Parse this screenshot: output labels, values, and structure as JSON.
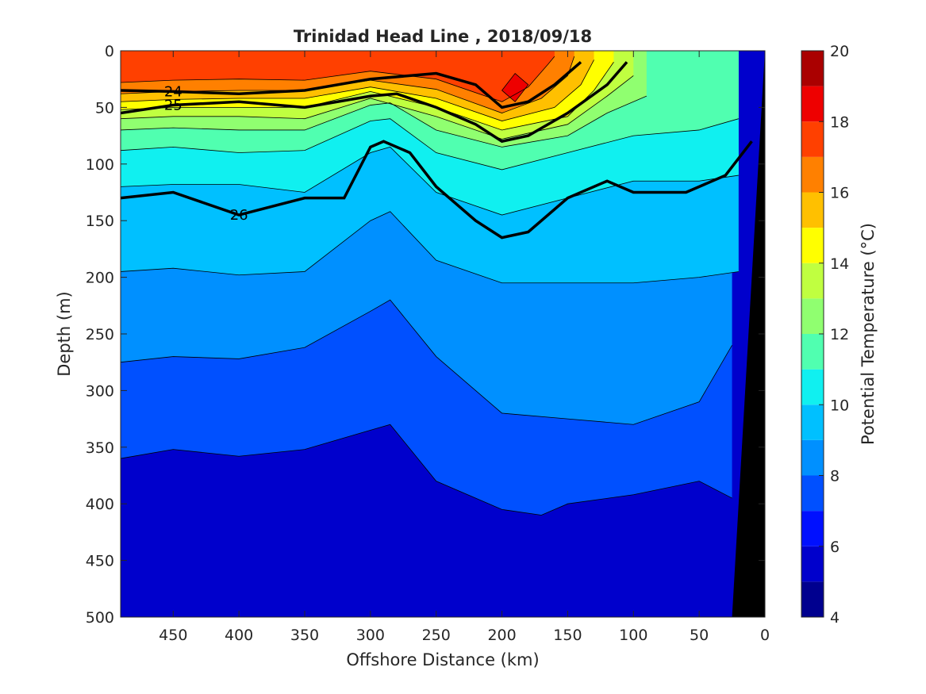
{
  "chart_data": {
    "type": "heatmap",
    "title": "Trinidad Head Line , 2018/09/18",
    "xlabel": "Offshore Distance (km)",
    "ylabel": "Depth (m)",
    "colorbar_label": "Potential Temperature (°C)",
    "xlim": [
      490,
      0
    ],
    "ylim": [
      0,
      500
    ],
    "y_reversed": true,
    "x_reversed": true,
    "xticks": [
      "450",
      "400",
      "350",
      "300",
      "250",
      "200",
      "150",
      "100",
      "50",
      "0"
    ],
    "yticks": [
      "0",
      "50",
      "100",
      "150",
      "200",
      "250",
      "300",
      "350",
      "400",
      "450",
      "500"
    ],
    "colorbar_ticks": [
      "20",
      "18",
      "16",
      "14",
      "12",
      "10",
      "8",
      "6",
      "4"
    ],
    "colorbar_range": [
      4,
      20
    ],
    "color_levels": [
      {
        "min": 4,
        "max": 5,
        "color": "#00008f"
      },
      {
        "min": 5,
        "max": 6,
        "color": "#0000cc"
      },
      {
        "min": 6,
        "max": 7,
        "color": "#0010ff"
      },
      {
        "min": 7,
        "max": 8,
        "color": "#0050ff"
      },
      {
        "min": 8,
        "max": 9,
        "color": "#0090ff"
      },
      {
        "min": 9,
        "max": 10,
        "color": "#00c0ff"
      },
      {
        "min": 10,
        "max": 11,
        "color": "#10f0f0"
      },
      {
        "min": 11,
        "max": 12,
        "color": "#50ffb0"
      },
      {
        "min": 12,
        "max": 13,
        "color": "#90ff70"
      },
      {
        "min": 13,
        "max": 14,
        "color": "#c0ff40"
      },
      {
        "min": 14,
        "max": 15,
        "color": "#ffff00"
      },
      {
        "min": 15,
        "max": 16,
        "color": "#ffc000"
      },
      {
        "min": 16,
        "max": 17,
        "color": "#ff8000"
      },
      {
        "min": 17,
        "max": 18,
        "color": "#ff4000"
      },
      {
        "min": 18,
        "max": 19,
        "color": "#ee0000"
      },
      {
        "min": 19,
        "max": 20,
        "color": "#aa0000"
      }
    ],
    "temperature_surfaces": [
      {
        "t": 7,
        "depth": [
          [
            490,
            360
          ],
          [
            450,
            352
          ],
          [
            400,
            358
          ],
          [
            350,
            352
          ],
          [
            300,
            335
          ],
          [
            285,
            330
          ],
          [
            250,
            380
          ],
          [
            200,
            405
          ],
          [
            170,
            410
          ],
          [
            150,
            400
          ],
          [
            100,
            392
          ],
          [
            50,
            380
          ],
          [
            25,
            395
          ]
        ]
      },
      {
        "t": 8,
        "depth": [
          [
            490,
            275
          ],
          [
            450,
            270
          ],
          [
            400,
            272
          ],
          [
            350,
            262
          ],
          [
            300,
            230
          ],
          [
            285,
            220
          ],
          [
            250,
            270
          ],
          [
            200,
            320
          ],
          [
            150,
            325
          ],
          [
            100,
            330
          ],
          [
            50,
            310
          ],
          [
            30,
            270
          ],
          [
            25,
            260
          ]
        ]
      },
      {
        "t": 9,
        "depth": [
          [
            490,
            195
          ],
          [
            450,
            192
          ],
          [
            400,
            198
          ],
          [
            350,
            195
          ],
          [
            300,
            150
          ],
          [
            285,
            142
          ],
          [
            250,
            185
          ],
          [
            200,
            205
          ],
          [
            150,
            205
          ],
          [
            100,
            205
          ],
          [
            50,
            200
          ],
          [
            20,
            195
          ]
        ]
      },
      {
        "t": 10,
        "depth": [
          [
            490,
            120
          ],
          [
            450,
            118
          ],
          [
            400,
            118
          ],
          [
            350,
            125
          ],
          [
            300,
            90
          ],
          [
            285,
            85
          ],
          [
            250,
            125
          ],
          [
            200,
            145
          ],
          [
            150,
            130
          ],
          [
            100,
            115
          ],
          [
            50,
            115
          ],
          [
            20,
            110
          ]
        ]
      },
      {
        "t": 11,
        "depth": [
          [
            490,
            88
          ],
          [
            450,
            85
          ],
          [
            400,
            90
          ],
          [
            350,
            88
          ],
          [
            300,
            62
          ],
          [
            285,
            60
          ],
          [
            250,
            90
          ],
          [
            200,
            105
          ],
          [
            150,
            90
          ],
          [
            100,
            75
          ],
          [
            50,
            70
          ],
          [
            20,
            60
          ]
        ]
      },
      {
        "t": 12,
        "depth": [
          [
            490,
            70
          ],
          [
            450,
            68
          ],
          [
            400,
            70
          ],
          [
            350,
            70
          ],
          [
            300,
            48
          ],
          [
            285,
            46
          ],
          [
            250,
            70
          ],
          [
            200,
            85
          ],
          [
            150,
            75
          ],
          [
            120,
            55
          ],
          [
            90,
            40
          ]
        ]
      },
      {
        "t": 13,
        "depth": [
          [
            490,
            60
          ],
          [
            450,
            58
          ],
          [
            400,
            58
          ],
          [
            350,
            60
          ],
          [
            300,
            42
          ],
          [
            250,
            58
          ],
          [
            200,
            78
          ],
          [
            150,
            65
          ],
          [
            120,
            40
          ],
          [
            100,
            22
          ]
        ]
      },
      {
        "t": 14,
        "depth": [
          [
            490,
            52
          ],
          [
            450,
            50
          ],
          [
            400,
            50
          ],
          [
            350,
            50
          ],
          [
            300,
            36
          ],
          [
            250,
            50
          ],
          [
            200,
            70
          ],
          [
            150,
            58
          ],
          [
            130,
            35
          ],
          [
            115,
            10
          ]
        ]
      },
      {
        "t": 15,
        "depth": [
          [
            490,
            45
          ],
          [
            450,
            43
          ],
          [
            400,
            42
          ],
          [
            350,
            42
          ],
          [
            300,
            32
          ],
          [
            250,
            42
          ],
          [
            200,
            62
          ],
          [
            160,
            50
          ],
          [
            140,
            30
          ],
          [
            130,
            8
          ]
        ]
      },
      {
        "t": 16,
        "depth": [
          [
            490,
            38
          ],
          [
            450,
            36
          ],
          [
            400,
            35
          ],
          [
            350,
            35
          ],
          [
            300,
            26
          ],
          [
            250,
            34
          ],
          [
            200,
            55
          ],
          [
            170,
            42
          ],
          [
            150,
            22
          ],
          [
            145,
            5
          ]
        ]
      },
      {
        "t": 17,
        "depth": [
          [
            490,
            28
          ],
          [
            450,
            26
          ],
          [
            400,
            25
          ],
          [
            350,
            26
          ],
          [
            300,
            18
          ],
          [
            250,
            25
          ],
          [
            200,
            45
          ],
          [
            180,
            32
          ],
          [
            165,
            12
          ],
          [
            160,
            5
          ]
        ]
      },
      {
        "t": 18,
        "depth": [
          [
            200,
            35
          ],
          [
            190,
            45
          ],
          [
            180,
            30
          ],
          [
            190,
            20
          ]
        ]
      }
    ],
    "isopycnals": [
      {
        "sigma": 24,
        "label": "24",
        "x": [
          490,
          450,
          400,
          350,
          300,
          250,
          220,
          200,
          180,
          160,
          140
        ],
        "depth": [
          35,
          36,
          38,
          35,
          25,
          20,
          30,
          50,
          45,
          30,
          10
        ]
      },
      {
        "sigma": 25,
        "label": "25",
        "x": [
          490,
          450,
          400,
          350,
          300,
          280,
          250,
          220,
          200,
          180,
          150,
          120,
          105
        ],
        "depth": [
          55,
          48,
          45,
          50,
          40,
          38,
          50,
          65,
          80,
          75,
          55,
          30,
          10
        ]
      },
      {
        "sigma": 26,
        "label": "26",
        "x": [
          490,
          450,
          400,
          350,
          320,
          300,
          290,
          270,
          250,
          220,
          200,
          180,
          150,
          120,
          100,
          60,
          30,
          10
        ],
        "depth": [
          130,
          125,
          145,
          130,
          130,
          85,
          80,
          90,
          120,
          150,
          165,
          160,
          130,
          115,
          125,
          125,
          110,
          80
        ]
      }
    ]
  }
}
